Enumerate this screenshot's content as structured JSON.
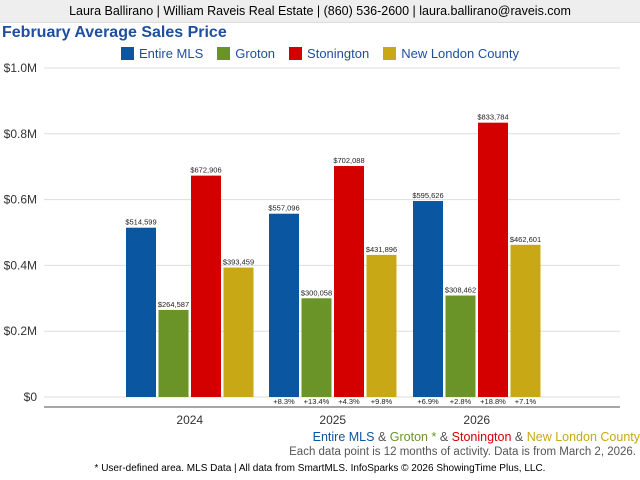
{
  "header": {
    "contact": "Laura Ballirano | William Raveis Real Estate | (860) 536-2600 | laura.ballirano@raveis.com"
  },
  "colors": {
    "entire_mls": "#0a56a0",
    "groton": "#6a9428",
    "stonington": "#d40000",
    "new_london_county": "#c9a815"
  },
  "chart_data": {
    "type": "bar",
    "title": "February Average Sales Price",
    "xlabel": "",
    "ylabel": "",
    "ylim": [
      0,
      1000000
    ],
    "yticks": [
      {
        "value": 0,
        "label": "$0"
      },
      {
        "value": 200000,
        "label": "$0.2M"
      },
      {
        "value": 400000,
        "label": "$0.4M"
      },
      {
        "value": 600000,
        "label": "$0.6M"
      },
      {
        "value": 800000,
        "label": "$0.8M"
      },
      {
        "value": 1000000,
        "label": "$1.0M"
      }
    ],
    "categories": [
      "2024",
      "2025",
      "2026"
    ],
    "series": [
      {
        "name": "Entire MLS",
        "color": "#0a56a0",
        "values": [
          514599,
          557096,
          595626
        ],
        "labels": [
          "$514,599",
          "$557,096",
          "$595,626"
        ],
        "changes": [
          "",
          "+8.3%",
          "+6.9%"
        ]
      },
      {
        "name": "Groton",
        "color": "#6a9428",
        "values": [
          264587,
          300058,
          308462
        ],
        "labels": [
          "$264,587",
          "$300,058",
          "$308,462"
        ],
        "changes": [
          "",
          "+13.4%",
          "+2.8%"
        ]
      },
      {
        "name": "Stonington",
        "color": "#d40000",
        "values": [
          672906,
          702088,
          833784
        ],
        "labels": [
          "$672,906",
          "$702,088",
          "$833,784"
        ],
        "changes": [
          "",
          "+4.3%",
          "+18.8%"
        ]
      },
      {
        "name": "New London County",
        "color": "#c9a815",
        "values": [
          393459,
          431896,
          462601
        ],
        "labels": [
          "$393,459",
          "$431,896",
          "$462,601"
        ],
        "changes": [
          "",
          "+9.8%",
          "+7.1%"
        ]
      }
    ],
    "legend_position": "top-center"
  },
  "subtitle": {
    "s1": "Entire MLS",
    "sep1": " & ",
    "s2": "Groton *",
    "sep2": " & ",
    "s3": "Stonington",
    "sep3": " & ",
    "s4": "New London County"
  },
  "note": "Each data point is 12 months of activity. Data is from March 2, 2026.",
  "footer": "* User-defined area. MLS Data | All data from SmartMLS. InfoSparks © 2026 ShowingTime Plus, LLC."
}
